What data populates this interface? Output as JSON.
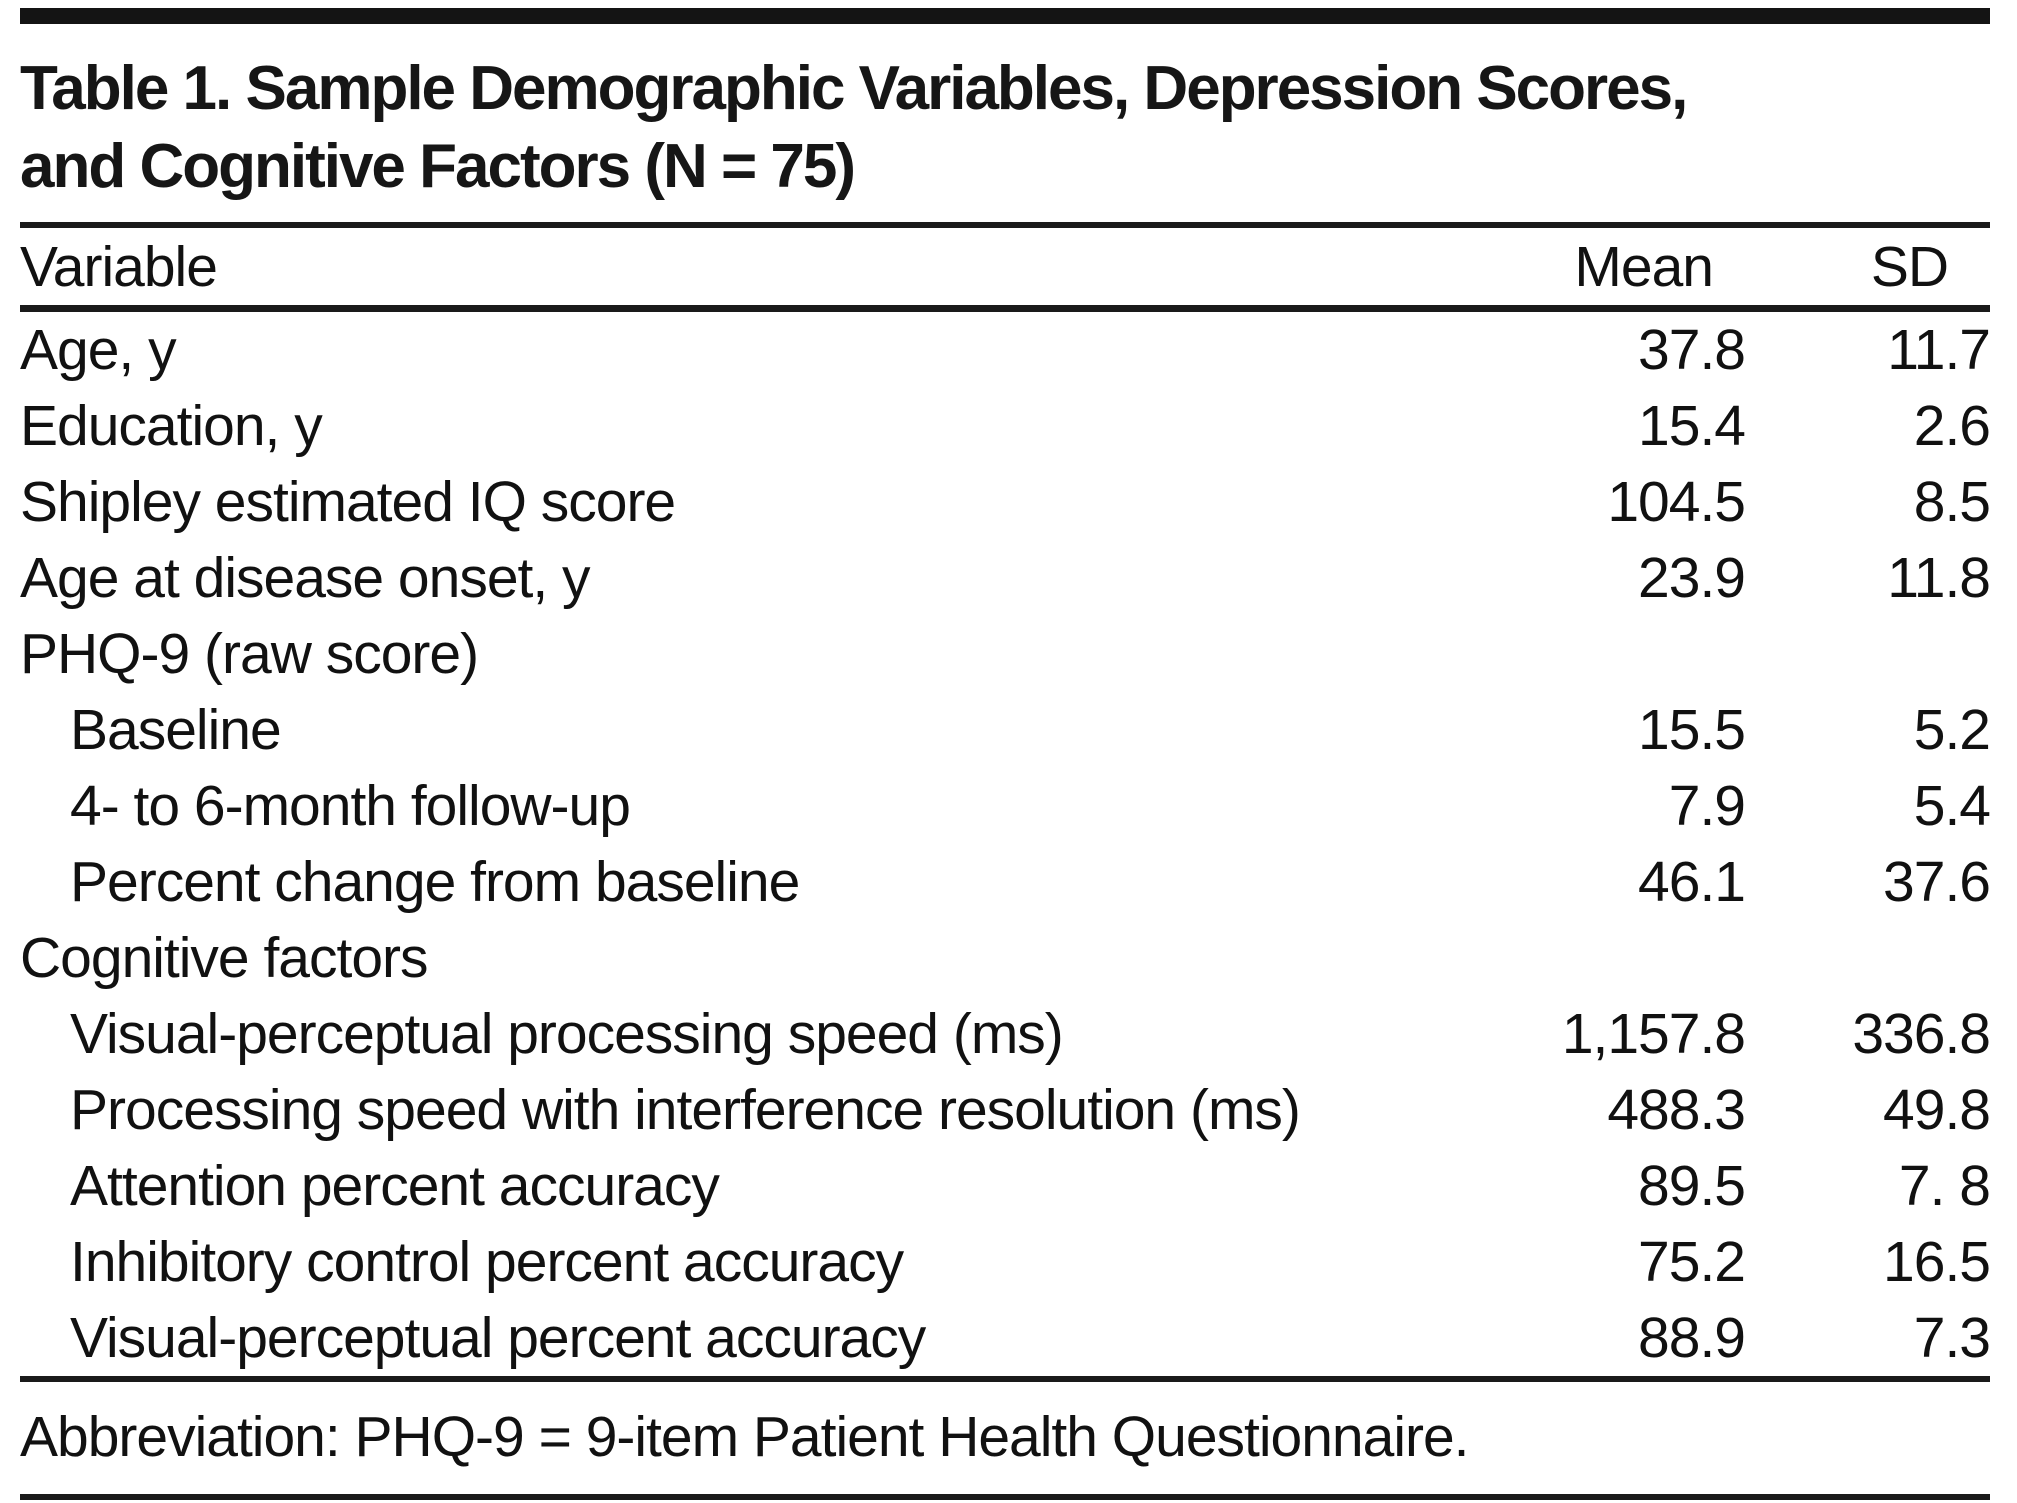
{
  "table": {
    "title_lines": [
      "Table 1. Sample Demographic Variables, Depression Scores,",
      "and Cognitive Factors (N = 75)"
    ],
    "columns": {
      "variable": "Variable",
      "mean": "Mean",
      "sd": "SD"
    },
    "rows": [
      {
        "label": "Age, y",
        "mean": "37.8",
        "sd": "11.7"
      },
      {
        "label": "Education, y",
        "mean": "15.4",
        "sd": "2.6"
      },
      {
        "label": "Shipley estimated IQ score",
        "mean": "104.5",
        "sd": "8.5"
      },
      {
        "label": "Age at disease onset, y",
        "mean": "23.9",
        "sd": "11.8"
      },
      {
        "label": "PHQ-9 (raw score)",
        "mean": "",
        "sd": ""
      },
      {
        "label": "Baseline",
        "mean": "15.5",
        "sd": "5.2"
      },
      {
        "label": "4- to 6-month follow-up",
        "mean": "7.9",
        "sd": "5.4"
      },
      {
        "label": "Percent change from baseline",
        "mean": "46.1",
        "sd": "37.6"
      },
      {
        "label": "Cognitive factors",
        "mean": "",
        "sd": ""
      },
      {
        "label": "Visual-perceptual processing speed (ms)",
        "mean": "1,157.8",
        "sd": "336.8"
      },
      {
        "label": "Processing speed with interference resolution (ms)",
        "mean": "488.3",
        "sd": "49.8"
      },
      {
        "label": "Attention percent accuracy",
        "mean": "89.5",
        "sd": "7. 8"
      },
      {
        "label": "Inhibitory control percent accuracy",
        "mean": "75.2",
        "sd": "16.5"
      },
      {
        "label": "Visual-perceptual percent accuracy",
        "mean": "88.9",
        "sd": "7.3"
      }
    ],
    "footnote": "Abbreviation: PHQ-9 = 9-item Patient Health Questionnaire."
  }
}
